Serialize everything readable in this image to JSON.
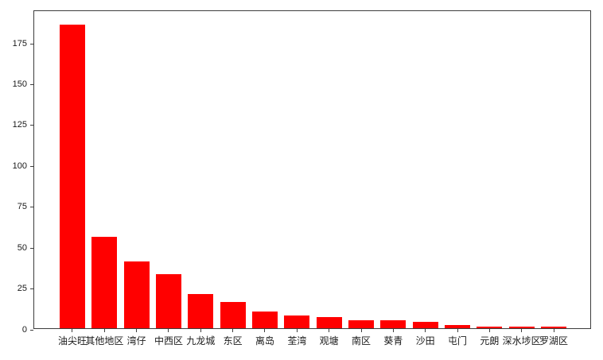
{
  "figure": {
    "background": "#ffffff",
    "spine_color": "#3d3d3d",
    "text_color": "#1a1a1a"
  },
  "chart_data": {
    "type": "bar",
    "title": "",
    "xlabel": "",
    "ylabel": "",
    "categories": [
      "油尖旺",
      "其他地区",
      "湾仔",
      "中西区",
      "九龙城",
      "东区",
      "离岛",
      "荃湾",
      "观塘",
      "南区",
      "葵青",
      "沙田",
      "屯门",
      "元朗",
      "深水埗区",
      "罗湖区"
    ],
    "values": [
      186,
      56,
      41,
      33,
      21,
      16,
      10,
      8,
      7,
      5,
      5,
      4,
      2,
      1,
      1,
      1
    ],
    "bar_color": "#ff0000",
    "ylim": [
      0,
      195
    ],
    "yticks": [
      0,
      25,
      50,
      75,
      100,
      125,
      150,
      175
    ],
    "grid": false,
    "legend": null
  }
}
